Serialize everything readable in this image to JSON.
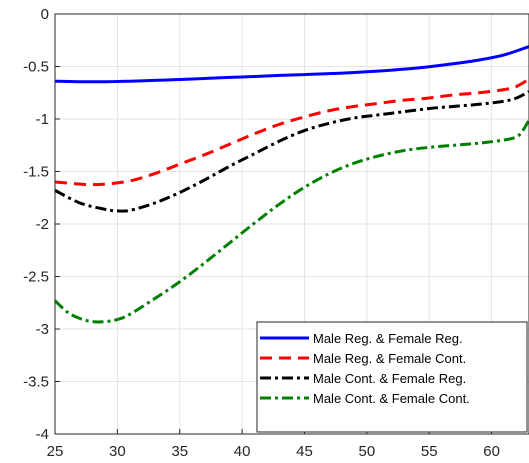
{
  "chart_data": {
    "type": "line",
    "xlim": [
      25,
      63
    ],
    "ylim": [
      -4,
      0
    ],
    "x_ticks": [
      25,
      30,
      35,
      40,
      45,
      50,
      55,
      60
    ],
    "y_ticks": [
      0,
      -0.5,
      -1,
      -1.5,
      -2,
      -2.5,
      -3,
      -3.5,
      -4
    ],
    "x_tick_labels": [
      "25",
      "30",
      "35",
      "40",
      "45",
      "50",
      "55",
      "60"
    ],
    "y_tick_labels": [
      "0",
      "-0.5",
      "-1",
      "-1.5",
      "-2",
      "-2.5",
      "-3",
      "-3.5",
      "-4"
    ],
    "grid": true,
    "legend_position": "bottom-right",
    "series": [
      {
        "name": "Male Reg. & Female Reg.",
        "color": "#0000ff",
        "dash": "solid",
        "x": [
          25,
          27,
          29,
          31,
          33,
          35,
          37,
          39,
          41,
          43,
          45,
          47,
          49,
          51,
          53,
          55,
          57,
          59,
          61,
          63
        ],
        "y": [
          -0.64,
          -0.645,
          -0.645,
          -0.64,
          -0.632,
          -0.624,
          -0.614,
          -0.604,
          -0.595,
          -0.585,
          -0.577,
          -0.568,
          -0.557,
          -0.543,
          -0.525,
          -0.502,
          -0.473,
          -0.438,
          -0.39,
          -0.31
        ]
      },
      {
        "name": "Male Reg. & Female Cont.",
        "color": "#ff0000",
        "dash": "dashed",
        "x": [
          25,
          27,
          28,
          29,
          31,
          33,
          35,
          37,
          39,
          41,
          43,
          45,
          47,
          49,
          51,
          53,
          55,
          57,
          59,
          61,
          62,
          63
        ],
        "y": [
          -1.6,
          -1.62,
          -1.625,
          -1.62,
          -1.59,
          -1.52,
          -1.43,
          -1.34,
          -1.24,
          -1.14,
          -1.05,
          -0.98,
          -0.92,
          -0.88,
          -0.85,
          -0.82,
          -0.8,
          -0.77,
          -0.75,
          -0.72,
          -0.69,
          -0.62
        ]
      },
      {
        "name": "Male Cont. & Female Reg.",
        "color": "#000000",
        "dash": "dashdot",
        "x": [
          25,
          27,
          29,
          30,
          31,
          33,
          35,
          37,
          39,
          41,
          43,
          45,
          47,
          49,
          51,
          53,
          55,
          57,
          59,
          61,
          62,
          63
        ],
        "y": [
          -1.68,
          -1.8,
          -1.86,
          -1.875,
          -1.87,
          -1.8,
          -1.7,
          -1.58,
          -1.45,
          -1.33,
          -1.21,
          -1.11,
          -1.04,
          -0.99,
          -0.96,
          -0.93,
          -0.9,
          -0.88,
          -0.86,
          -0.83,
          -0.8,
          -0.74
        ]
      },
      {
        "name": "Male Cont. & Female Cont.",
        "color": "#008000",
        "dash": "dashdot",
        "x": [
          25,
          26,
          27,
          28,
          29,
          30,
          31,
          33,
          35,
          37,
          39,
          41,
          43,
          45,
          47,
          49,
          51,
          53,
          55,
          57,
          59,
          61,
          62,
          62.5,
          63
        ],
        "y": [
          -2.73,
          -2.84,
          -2.9,
          -2.93,
          -2.93,
          -2.91,
          -2.86,
          -2.71,
          -2.55,
          -2.37,
          -2.18,
          -1.99,
          -1.81,
          -1.65,
          -1.52,
          -1.42,
          -1.35,
          -1.3,
          -1.27,
          -1.25,
          -1.23,
          -1.2,
          -1.17,
          -1.11,
          -1.01
        ]
      }
    ]
  }
}
